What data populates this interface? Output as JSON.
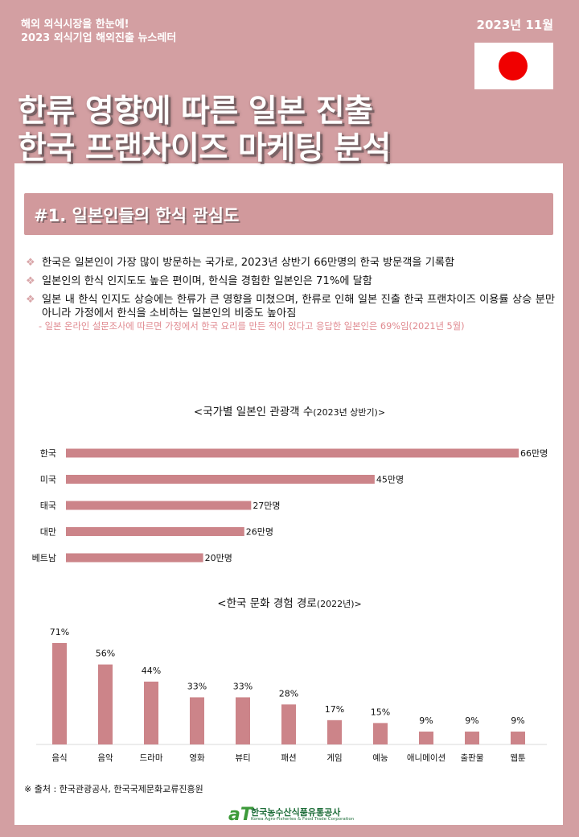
{
  "header": {
    "line1": "해외 외식시장을 한눈에!",
    "line2": "2023 외식기업 해외진출 뉴스레터",
    "date": "2023년 11월",
    "flag_icon": "japan-flag-icon"
  },
  "title": {
    "line1": "한류 영향에 따른 일본 진출",
    "line2": "한국 프랜차이즈 마케팅 분석"
  },
  "section": {
    "heading": "#1. 일본인들의 한식 관심도"
  },
  "bullets": [
    "한국은 일본인이 가장 많이 방문하는 국가로, 2023년 상반기 66만명의 한국 방문객을 기록함",
    "일본인의 한식 인지도도 높은 편이며, 한식을 경험한 일본인은 71%에 달함",
    "일본 내 한식 인지도 상승에는 한류가 큰 영향을 미쳤으며, 한류로 인해 일본 진출 한국 프랜차이즈 이용률 상승 분만 아니라 가정에서 한식을 소비하는 일본인의 비중도 높아짐"
  ],
  "note": "- 일본 온라인 설문조사에 따르면 가정에서 한국 요리를 만든 적이 있다고 응답한 일본인은 69%임(2021년 5월)",
  "chart_data": [
    {
      "type": "bar",
      "orientation": "horizontal",
      "title": "<국가별 일본인 관광객 수",
      "subtitle": "(2023년 상반기)>",
      "categories": [
        "한국",
        "미국",
        "태국",
        "대만",
        "베트남"
      ],
      "values": [
        66,
        45,
        27,
        26,
        20
      ],
      "value_labels": [
        "66만명",
        "45만명",
        "27만명",
        "26만명",
        "20만명"
      ],
      "unit": "만명",
      "xlim": [
        0,
        66
      ],
      "color": "#cc8489",
      "grid": false
    },
    {
      "type": "bar",
      "orientation": "vertical",
      "title": "<한국 문화 경험 경로",
      "subtitle": "(2022년)>",
      "categories": [
        "음식",
        "음악",
        "드라마",
        "영화",
        "뷰티",
        "패션",
        "게임",
        "예능",
        "애니메이션",
        "출판물",
        "웹툰"
      ],
      "values": [
        71,
        56,
        44,
        33,
        33,
        28,
        17,
        15,
        9,
        9,
        9
      ],
      "value_labels": [
        "71%",
        "56%",
        "44%",
        "33%",
        "33%",
        "28%",
        "17%",
        "15%",
        "9%",
        "9%",
        "9%"
      ],
      "unit": "%",
      "ylim": [
        0,
        71
      ],
      "color": "#cc8489",
      "grid": false
    }
  ],
  "source": "※ 출처 : 한국관광공사, 한국국제문화교류진흥원",
  "logo": {
    "mark": "aT",
    "korean": "한국농수산식품유통공사",
    "english": "Korea Agro-Fisheries & Food Trade Corporation"
  },
  "colors": {
    "background": "#d39fa2",
    "bar": "#cc8489",
    "section_bar": "#d1999c",
    "note": "#e08a90"
  }
}
